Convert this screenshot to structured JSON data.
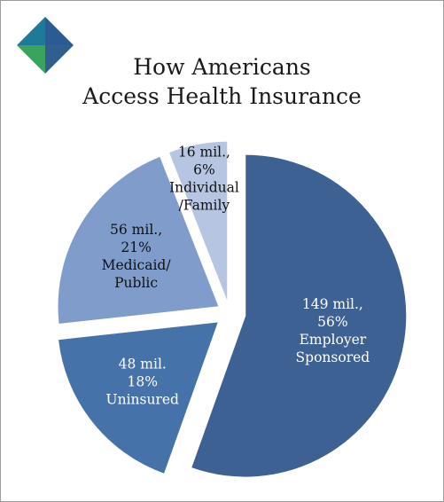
{
  "title": {
    "line1": "How Americans",
    "line2": "Access Health Insurance"
  },
  "logo": {
    "icon": "diamond-logo-icon",
    "colors": [
      "#1f7a9a",
      "#2a5b92",
      "#3aa35c"
    ]
  },
  "chart_data": {
    "type": "pie",
    "title": "How Americans Access Health Insurance",
    "slices": [
      {
        "category": "Employer Sponsored",
        "value_mil": 149,
        "percent": 56,
        "color": "#3e6193",
        "text_color": "#ffffff",
        "exploded": true,
        "label_lines": [
          "149 mil.,",
          "56%",
          "Employer",
          "Sponsored"
        ]
      },
      {
        "category": "Uninsured",
        "value_mil": 48,
        "percent": 18,
        "color": "#4573a9",
        "text_color": "#ffffff",
        "exploded": true,
        "label_lines": [
          "48 mil.",
          "18%",
          "Uninsured"
        ]
      },
      {
        "category": "Medicaid/Public",
        "value_mil": 56,
        "percent": 21,
        "color": "#7f9ccb",
        "text_color": "#111111",
        "exploded": true,
        "label_lines": [
          "56 mil.,",
          "21%",
          "Medicaid/",
          "Public"
        ]
      },
      {
        "category": "Individual/Family",
        "value_mil": 16,
        "percent": 6,
        "color": "#b6c6e2",
        "text_color": "#111111",
        "exploded": true,
        "label_lines": [
          "16 mil.,",
          "6%",
          "Individual",
          "/Family"
        ]
      }
    ]
  }
}
